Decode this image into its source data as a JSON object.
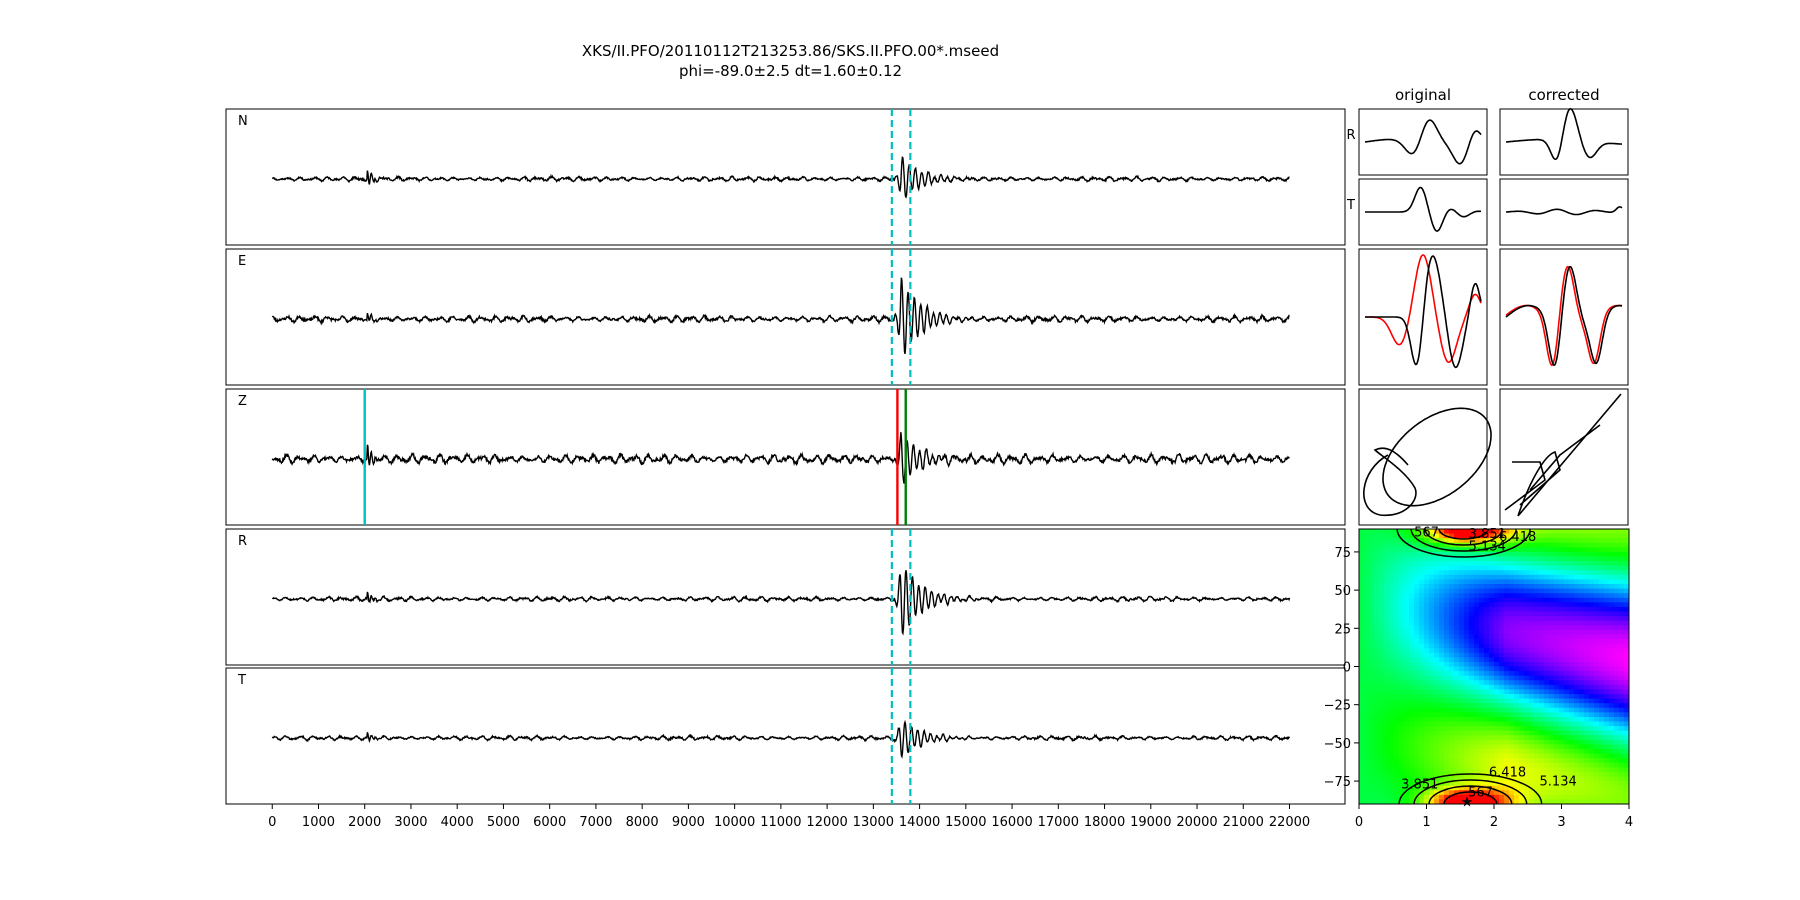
{
  "title": "XKS/II.PFO/20110112T213253.86/SKS.II.PFO.00*.mseed",
  "subtitle": "phi=-89.0±2.5 dt=1.60±0.12",
  "chart_data": [
    {
      "type": "line",
      "name": "traces",
      "panels": [
        "N",
        "E",
        "Z",
        "R",
        "T"
      ],
      "xlim": [
        -1000,
        23200
      ],
      "xticks": [
        0,
        1000,
        2000,
        3000,
        4000,
        5000,
        6000,
        7000,
        8000,
        9000,
        10000,
        11000,
        12000,
        13000,
        14000,
        15000,
        16000,
        17000,
        18000,
        19000,
        20000,
        21000,
        22000
      ],
      "window_lines": {
        "color": "#00bfbf",
        "style": "dashed",
        "x": [
          13400,
          13800
        ],
        "panels": [
          "N",
          "E",
          "R",
          "T"
        ]
      },
      "picks": [
        {
          "panel": "Z",
          "x": 2000,
          "color": "#00bfbf"
        },
        {
          "panel": "Z",
          "x": 13520,
          "color": "#ff0000"
        },
        {
          "panel": "Z",
          "x": 13700,
          "color": "#008000"
        }
      ],
      "signal_onsets": [
        2050,
        13600
      ]
    },
    {
      "type": "line",
      "name": "particle-motion",
      "column_titles": [
        "original",
        "corrected"
      ],
      "row_labels": [
        "R",
        "T"
      ],
      "series_colors": [
        "#000000",
        "#ff0000"
      ]
    },
    {
      "type": "heatmap",
      "name": "error-surface",
      "xlim": [
        0,
        4
      ],
      "ylim": [
        -90,
        90
      ],
      "xticks": [
        0,
        1,
        2,
        3,
        4
      ],
      "yticks": [
        -75,
        -50,
        -25,
        0,
        25,
        50,
        75
      ],
      "colormap": "gist_rainbow",
      "minimum": {
        "x": 1.6,
        "y": -89.0
      },
      "contour_labels": [
        {
          "text": "3.851",
          "x": 1.9,
          "y": 84
        },
        {
          "text": "6.418",
          "x": 2.35,
          "y": 82
        },
        {
          "text": "5.134",
          "x": 1.9,
          "y": 76
        },
        {
          "text": "567",
          "x": 1.0,
          "y": 85
        },
        {
          "text": "6.418",
          "x": 2.2,
          "y": -72
        },
        {
          "text": "5.134",
          "x": 2.95,
          "y": -78
        },
        {
          "text": "3.851",
          "x": 0.9,
          "y": -80
        },
        {
          "text": "567",
          "x": 1.8,
          "y": -85
        }
      ]
    }
  ]
}
